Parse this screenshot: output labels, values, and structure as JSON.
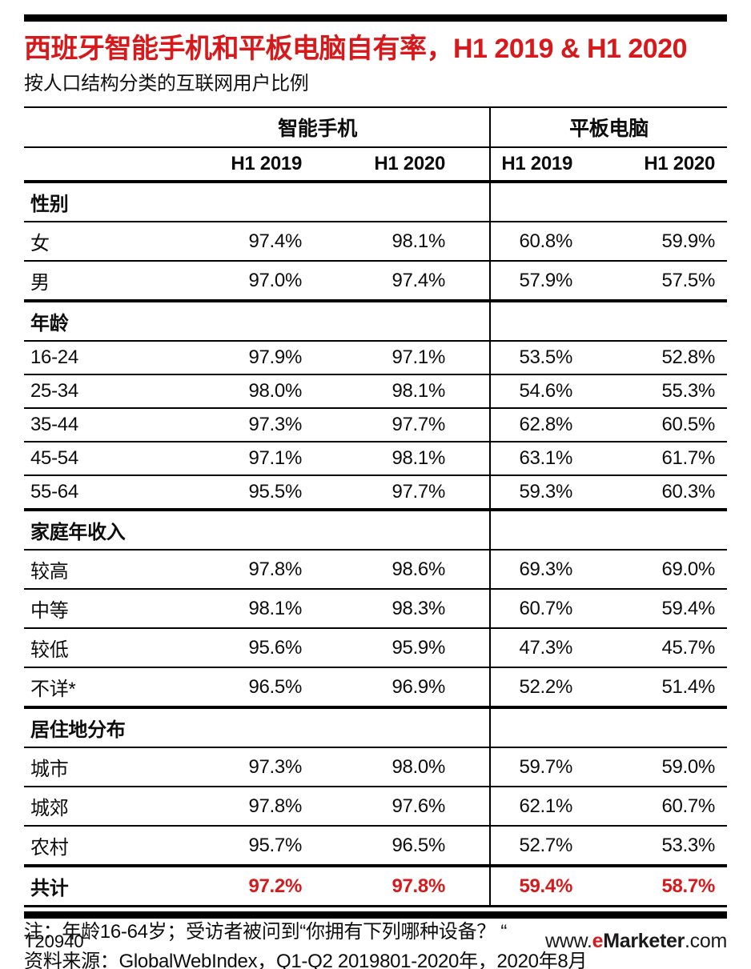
{
  "page": {
    "title": "西班牙智能手机和平板电脑自有率，H1 2019 & H1 2020",
    "subtitle": "按人口结构分类的互联网用户比例",
    "note_line1": "注：年龄16-64岁；受访者被问到“你拥有下列哪种设备？ “",
    "note_line2": "资料来源：GlobalWebIndex，Q1-Q2 2019801-2020年，2020年8月",
    "footer_id": "T20940",
    "brand": {
      "www": "www.",
      "e": "e",
      "marketer": "Marketer",
      "com": ".com"
    }
  },
  "colors": {
    "accent_red": "#d8191c",
    "rule_black": "#000000"
  },
  "chart_data": {
    "type": "table",
    "title": "西班牙智能手机和平板电脑自有率，H1 2019 & H1 2020",
    "subtitle": "按人口结构分类的互联网用户比例",
    "column_groups": [
      "智能手机",
      "平板电脑"
    ],
    "columns": [
      "H1 2019",
      "H1 2020",
      "H1 2019",
      "H1 2020"
    ],
    "sections": [
      {
        "header": "性别",
        "rows": [
          {
            "label": "女",
            "values": [
              "97.4%",
              "98.1%",
              "60.8%",
              "59.9%"
            ]
          },
          {
            "label": "男",
            "values": [
              "97.0%",
              "97.4%",
              "57.9%",
              "57.5%"
            ]
          }
        ]
      },
      {
        "header": "年龄",
        "rows": [
          {
            "label": "16-24",
            "values": [
              "97.9%",
              "97.1%",
              "53.5%",
              "52.8%"
            ]
          },
          {
            "label": "25-34",
            "values": [
              "98.0%",
              "98.1%",
              "54.6%",
              "55.3%"
            ]
          },
          {
            "label": "35-44",
            "values": [
              "97.3%",
              "97.7%",
              "62.8%",
              "60.5%"
            ]
          },
          {
            "label": "45-54",
            "values": [
              "97.1%",
              "98.1%",
              "63.1%",
              "61.7%"
            ]
          },
          {
            "label": "55-64",
            "values": [
              "95.5%",
              "97.7%",
              "59.3%",
              "60.3%"
            ]
          }
        ]
      },
      {
        "header": "家庭年收入",
        "rows": [
          {
            "label": "较高",
            "values": [
              "97.8%",
              "98.6%",
              "69.3%",
              "69.0%"
            ]
          },
          {
            "label": "中等",
            "values": [
              "98.1%",
              "98.3%",
              "60.7%",
              "59.4%"
            ]
          },
          {
            "label": "较低",
            "values": [
              "95.6%",
              "95.9%",
              "47.3%",
              "45.7%"
            ]
          },
          {
            "label": "不详*",
            "values": [
              "96.5%",
              "96.9%",
              "52.2%",
              "51.4%"
            ]
          }
        ]
      },
      {
        "header": "居住地分布",
        "rows": [
          {
            "label": "城市",
            "values": [
              "97.3%",
              "98.0%",
              "59.7%",
              "59.0%"
            ]
          },
          {
            "label": "城郊",
            "values": [
              "97.8%",
              "97.6%",
              "62.1%",
              "60.7%"
            ]
          },
          {
            "label": "农村",
            "values": [
              "95.7%",
              "96.5%",
              "52.7%",
              "53.3%"
            ]
          }
        ]
      }
    ],
    "total_row": {
      "label": "共计",
      "values": [
        "97.2%",
        "97.8%",
        "59.4%",
        "58.7%"
      ]
    }
  }
}
